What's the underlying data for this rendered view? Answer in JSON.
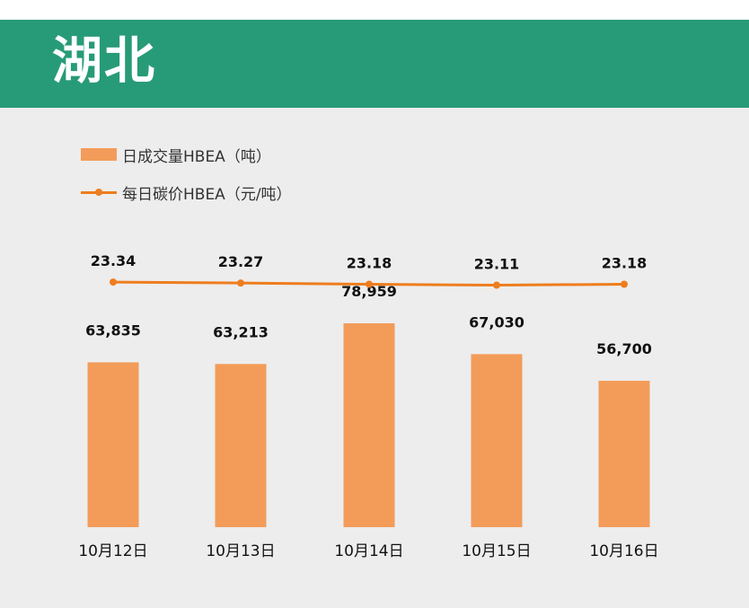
{
  "header": {
    "title": "湖北"
  },
  "legend": {
    "bar_label": "日成交量HBEA（吨）",
    "line_label": "每日碳价HBEA（元/吨）"
  },
  "colors": {
    "header_bg": "#279b77",
    "panel_bg": "#ededed",
    "bar": "#f39c5a",
    "line": "#ee7d1e"
  },
  "chart_data": {
    "type": "bar",
    "categories": [
      "10月12日",
      "10月13日",
      "10月14日",
      "10月15日",
      "10月16日"
    ],
    "series": [
      {
        "name": "日成交量HBEA（吨）",
        "type": "bar",
        "values": [
          63835,
          63213,
          78959,
          67030,
          56700
        ],
        "labels": [
          "63,835",
          "63,213",
          "78,959",
          "67,030",
          "56,700"
        ]
      },
      {
        "name": "每日碳价HBEA（元/吨）",
        "type": "line",
        "values": [
          23.34,
          23.27,
          23.18,
          23.11,
          23.18
        ],
        "labels": [
          "23.34",
          "23.27",
          "23.18",
          "23.11",
          "23.18"
        ]
      }
    ],
    "legend_position": "top-left",
    "grid": false
  }
}
